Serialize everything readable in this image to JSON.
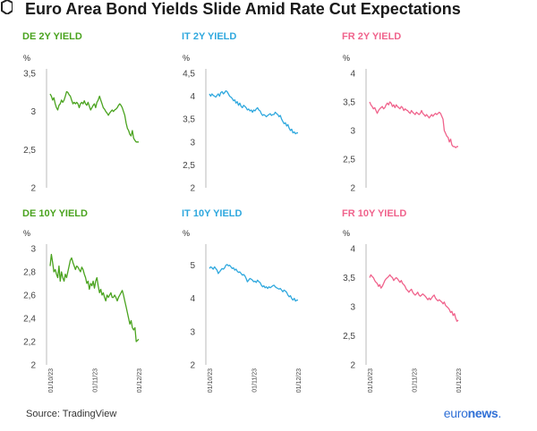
{
  "title": "Euro Area Bond Yields Slide Amid Rate Cut Expectations",
  "source": "Source: TradingView",
  "logo": {
    "light": "euro",
    "bold": "news",
    "dot": "."
  },
  "colors": {
    "DE": "#4aa31f",
    "IT": "#2fa8de",
    "FR": "#f0638c"
  },
  "chart_data": [
    {
      "type": "line",
      "title": "DE 2Y YIELD",
      "ylabel": "%",
      "color": "#4aa31f",
      "yticks": [
        "3,5",
        "3",
        "2,5",
        "2"
      ],
      "ylim": [
        2,
        3.5
      ],
      "xticks": [
        "01/10/23",
        "01/11/23",
        "01/12/23"
      ],
      "x": [
        0,
        1,
        2,
        3,
        4,
        5,
        6,
        7,
        8,
        9,
        10,
        11,
        12,
        13,
        14,
        15,
        16,
        17,
        18,
        19,
        20,
        21,
        22,
        23,
        24,
        25,
        26,
        27,
        28,
        29,
        30,
        31,
        32,
        33,
        34,
        35,
        36,
        37,
        38,
        39,
        40,
        41,
        42,
        43,
        44,
        45,
        46,
        47,
        48,
        49,
        50,
        51,
        52,
        53,
        54,
        55,
        56,
        57,
        58,
        59,
        60,
        61,
        62,
        63,
        64,
        65,
        66,
        67,
        68,
        69,
        70
      ],
      "values": [
        3.23,
        3.2,
        3.15,
        3.18,
        3.1,
        3.05,
        3.02,
        3.08,
        3.1,
        3.15,
        3.12,
        3.15,
        3.2,
        3.26,
        3.25,
        3.22,
        3.2,
        3.15,
        3.1,
        3.12,
        3.1,
        3.12,
        3.1,
        3.05,
        3.1,
        3.12,
        3.1,
        3.14,
        3.1,
        3.08,
        3.12,
        3.07,
        3.02,
        3.05,
        3.08,
        3.1,
        3.05,
        3.12,
        3.15,
        3.2,
        3.15,
        3.1,
        3.05,
        3.03,
        3.0,
        2.98,
        2.95,
        2.98,
        3.0,
        3.02,
        3.0,
        3.02,
        3.03,
        3.05,
        3.08,
        3.1,
        3.08,
        3.05,
        3.0,
        2.95,
        2.85,
        2.78,
        2.75,
        2.7,
        2.68,
        2.75,
        2.65,
        2.62,
        2.6,
        2.6,
        2.6
      ]
    },
    {
      "type": "line",
      "title": "IT 2Y YIELD",
      "ylabel": "%",
      "color": "#2fa8de",
      "yticks": [
        "4,5",
        "4",
        "3,5",
        "3",
        "2,5",
        "2"
      ],
      "ylim": [
        2,
        4.5
      ],
      "xticks": [
        "01/10/23",
        "01/11/23",
        "01/12/23"
      ],
      "x": [
        0,
        1,
        2,
        3,
        4,
        5,
        6,
        7,
        8,
        9,
        10,
        11,
        12,
        13,
        14,
        15,
        16,
        17,
        18,
        19,
        20,
        21,
        22,
        23,
        24,
        25,
        26,
        27,
        28,
        29,
        30,
        31,
        32,
        33,
        34,
        35,
        36,
        37,
        38,
        39,
        40,
        41,
        42,
        43,
        44,
        45,
        46,
        47,
        48,
        49,
        50,
        51,
        52,
        53,
        54,
        55,
        56,
        57,
        58,
        59,
        60,
        61,
        62,
        63,
        64,
        65,
        66,
        67,
        68,
        69,
        70
      ],
      "values": [
        4.05,
        4.0,
        4.05,
        4.02,
        4.0,
        3.98,
        4.02,
        4.05,
        4.0,
        4.08,
        4.1,
        4.05,
        4.08,
        4.12,
        4.1,
        4.05,
        4.0,
        3.98,
        3.95,
        3.9,
        3.92,
        3.85,
        3.88,
        3.8,
        3.85,
        3.78,
        3.75,
        3.8,
        3.78,
        3.75,
        3.7,
        3.72,
        3.68,
        3.7,
        3.65,
        3.7,
        3.68,
        3.72,
        3.75,
        3.7,
        3.68,
        3.62,
        3.58,
        3.6,
        3.58,
        3.55,
        3.58,
        3.6,
        3.62,
        3.58,
        3.6,
        3.6,
        3.65,
        3.62,
        3.6,
        3.55,
        3.58,
        3.5,
        3.45,
        3.4,
        3.42,
        3.35,
        3.38,
        3.3,
        3.25,
        3.28,
        3.2,
        3.22,
        3.18,
        3.2,
        3.2
      ]
    },
    {
      "type": "line",
      "title": "FR 2Y YIELD",
      "ylabel": "%",
      "color": "#f0638c",
      "yticks": [
        "4",
        "3,5",
        "3",
        "2,5",
        "2"
      ],
      "ylim": [
        2,
        4
      ],
      "xticks": [
        "01/10/23",
        "01/11/23",
        "01/12/23"
      ],
      "x": [
        0,
        1,
        2,
        3,
        4,
        5,
        6,
        7,
        8,
        9,
        10,
        11,
        12,
        13,
        14,
        15,
        16,
        17,
        18,
        19,
        20,
        21,
        22,
        23,
        24,
        25,
        26,
        27,
        28,
        29,
        30,
        31,
        32,
        33,
        34,
        35,
        36,
        37,
        38,
        39,
        40,
        41,
        42,
        43,
        44,
        45,
        46,
        47,
        48,
        49,
        50,
        51,
        52,
        53,
        54,
        55,
        56,
        57,
        58,
        59,
        60,
        61,
        62,
        63,
        64,
        65,
        66,
        67,
        68,
        69,
        70
      ],
      "values": [
        3.5,
        3.45,
        3.42,
        3.38,
        3.4,
        3.35,
        3.3,
        3.35,
        3.38,
        3.4,
        3.42,
        3.38,
        3.4,
        3.45,
        3.48,
        3.45,
        3.5,
        3.48,
        3.42,
        3.45,
        3.4,
        3.45,
        3.42,
        3.4,
        3.38,
        3.42,
        3.4,
        3.35,
        3.38,
        3.36,
        3.35,
        3.32,
        3.3,
        3.35,
        3.32,
        3.3,
        3.28,
        3.32,
        3.3,
        3.28,
        3.3,
        3.35,
        3.3,
        3.28,
        3.25,
        3.28,
        3.25,
        3.22,
        3.25,
        3.28,
        3.25,
        3.28,
        3.3,
        3.28,
        3.3,
        3.32,
        3.3,
        3.25,
        3.2,
        3.0,
        2.95,
        2.9,
        2.88,
        2.8,
        2.85,
        2.75,
        2.72,
        2.72,
        2.7,
        2.72,
        2.72
      ]
    },
    {
      "type": "line",
      "title": "DE 10Y YIELD",
      "ylabel": "%",
      "color": "#4aa31f",
      "yticks": [
        "3",
        "2,8",
        "2,6",
        "2,4",
        "2,2",
        "2"
      ],
      "ylim": [
        2,
        3
      ],
      "xticks": [
        "01/10/23",
        "01/11/23",
        "01/12/23"
      ],
      "x": [
        0,
        1,
        2,
        3,
        4,
        5,
        6,
        7,
        8,
        9,
        10,
        11,
        12,
        13,
        14,
        15,
        16,
        17,
        18,
        19,
        20,
        21,
        22,
        23,
        24,
        25,
        26,
        27,
        28,
        29,
        30,
        31,
        32,
        33,
        34,
        35,
        36,
        37,
        38,
        39,
        40,
        41,
        42,
        43,
        44,
        45,
        46,
        47,
        48,
        49,
        50,
        51,
        52,
        53,
        54,
        55,
        56,
        57,
        58,
        59,
        60,
        61,
        62,
        63,
        64,
        65,
        66,
        67,
        68,
        69,
        70
      ],
      "values": [
        2.85,
        2.95,
        2.88,
        2.8,
        2.82,
        2.78,
        2.75,
        2.85,
        2.72,
        2.8,
        2.75,
        2.72,
        2.78,
        2.75,
        2.8,
        2.85,
        2.9,
        2.92,
        2.88,
        2.85,
        2.82,
        2.85,
        2.84,
        2.82,
        2.8,
        2.84,
        2.82,
        2.78,
        2.75,
        2.7,
        2.72,
        2.65,
        2.7,
        2.68,
        2.72,
        2.66,
        2.72,
        2.75,
        2.68,
        2.62,
        2.65,
        2.6,
        2.62,
        2.58,
        2.55,
        2.6,
        2.58,
        2.6,
        2.62,
        2.58,
        2.58,
        2.6,
        2.58,
        2.55,
        2.58,
        2.6,
        2.62,
        2.64,
        2.6,
        2.55,
        2.5,
        2.45,
        2.4,
        2.35,
        2.38,
        2.32,
        2.3,
        2.32,
        2.2,
        2.21,
        2.22
      ]
    },
    {
      "type": "line",
      "title": "IT 10Y YIELD",
      "ylabel": "%",
      "color": "#2fa8de",
      "yticks": [
        "5",
        "4",
        "3",
        "2"
      ],
      "ylim": [
        2,
        5.5
      ],
      "xticks": [
        "01/10/23",
        "01/11/23",
        "01/12/23"
      ],
      "x": [
        0,
        1,
        2,
        3,
        4,
        5,
        6,
        7,
        8,
        9,
        10,
        11,
        12,
        13,
        14,
        15,
        16,
        17,
        18,
        19,
        20,
        21,
        22,
        23,
        24,
        25,
        26,
        27,
        28,
        29,
        30,
        31,
        32,
        33,
        34,
        35,
        36,
        37,
        38,
        39,
        40,
        41,
        42,
        43,
        44,
        45,
        46,
        47,
        48,
        49,
        50,
        51,
        52,
        53,
        54,
        55,
        56,
        57,
        58,
        59,
        60,
        61,
        62,
        63,
        64,
        65,
        66,
        67,
        68,
        69,
        70
      ],
      "values": [
        4.9,
        4.95,
        4.92,
        4.88,
        4.95,
        4.9,
        4.85,
        4.75,
        4.8,
        4.85,
        4.9,
        4.88,
        4.92,
        5.0,
        5.02,
        4.98,
        5.0,
        4.95,
        4.9,
        4.92,
        4.85,
        4.88,
        4.82,
        4.78,
        4.8,
        4.75,
        4.7,
        4.72,
        4.68,
        4.6,
        4.5,
        4.55,
        4.6,
        4.58,
        4.55,
        4.5,
        4.52,
        4.48,
        4.55,
        4.5,
        4.48,
        4.4,
        4.35,
        4.38,
        4.32,
        4.35,
        4.3,
        4.35,
        4.32,
        4.35,
        4.38,
        4.4,
        4.35,
        4.32,
        4.3,
        4.28,
        4.3,
        4.25,
        4.2,
        4.25,
        4.22,
        4.18,
        4.1,
        4.05,
        4.08,
        4.0,
        3.95,
        4.0,
        3.92,
        3.95,
        3.95
      ]
    },
    {
      "type": "line",
      "title": "FR 10Y YIELD",
      "ylabel": "%",
      "color": "#f0638c",
      "yticks": [
        "4",
        "3,5",
        "3",
        "2,5",
        "2"
      ],
      "ylim": [
        2,
        4
      ],
      "xticks": [
        "01/10/23",
        "01/11/23",
        "01/12/23"
      ],
      "x": [
        0,
        1,
        2,
        3,
        4,
        5,
        6,
        7,
        8,
        9,
        10,
        11,
        12,
        13,
        14,
        15,
        16,
        17,
        18,
        19,
        20,
        21,
        22,
        23,
        24,
        25,
        26,
        27,
        28,
        29,
        30,
        31,
        32,
        33,
        34,
        35,
        36,
        37,
        38,
        39,
        40,
        41,
        42,
        43,
        44,
        45,
        46,
        47,
        48,
        49,
        50,
        51,
        52,
        53,
        54,
        55,
        56,
        57,
        58,
        59,
        60,
        61,
        62,
        63,
        64,
        65,
        66,
        67,
        68,
        69,
        70
      ],
      "values": [
        3.5,
        3.55,
        3.52,
        3.5,
        3.45,
        3.42,
        3.4,
        3.35,
        3.38,
        3.32,
        3.35,
        3.4,
        3.45,
        3.48,
        3.5,
        3.52,
        3.55,
        3.52,
        3.5,
        3.45,
        3.48,
        3.5,
        3.48,
        3.45,
        3.42,
        3.45,
        3.4,
        3.38,
        3.35,
        3.3,
        3.28,
        3.25,
        3.28,
        3.3,
        3.25,
        3.22,
        3.2,
        3.22,
        3.25,
        3.2,
        3.18,
        3.2,
        3.22,
        3.2,
        3.18,
        3.15,
        3.12,
        3.15,
        3.12,
        3.15,
        3.18,
        3.2,
        3.15,
        3.12,
        3.1,
        3.12,
        3.1,
        3.08,
        3.05,
        3.08,
        3.02,
        3.0,
        2.98,
        2.95,
        2.9,
        2.92,
        2.85,
        2.88,
        2.8,
        2.75,
        2.77
      ]
    }
  ]
}
